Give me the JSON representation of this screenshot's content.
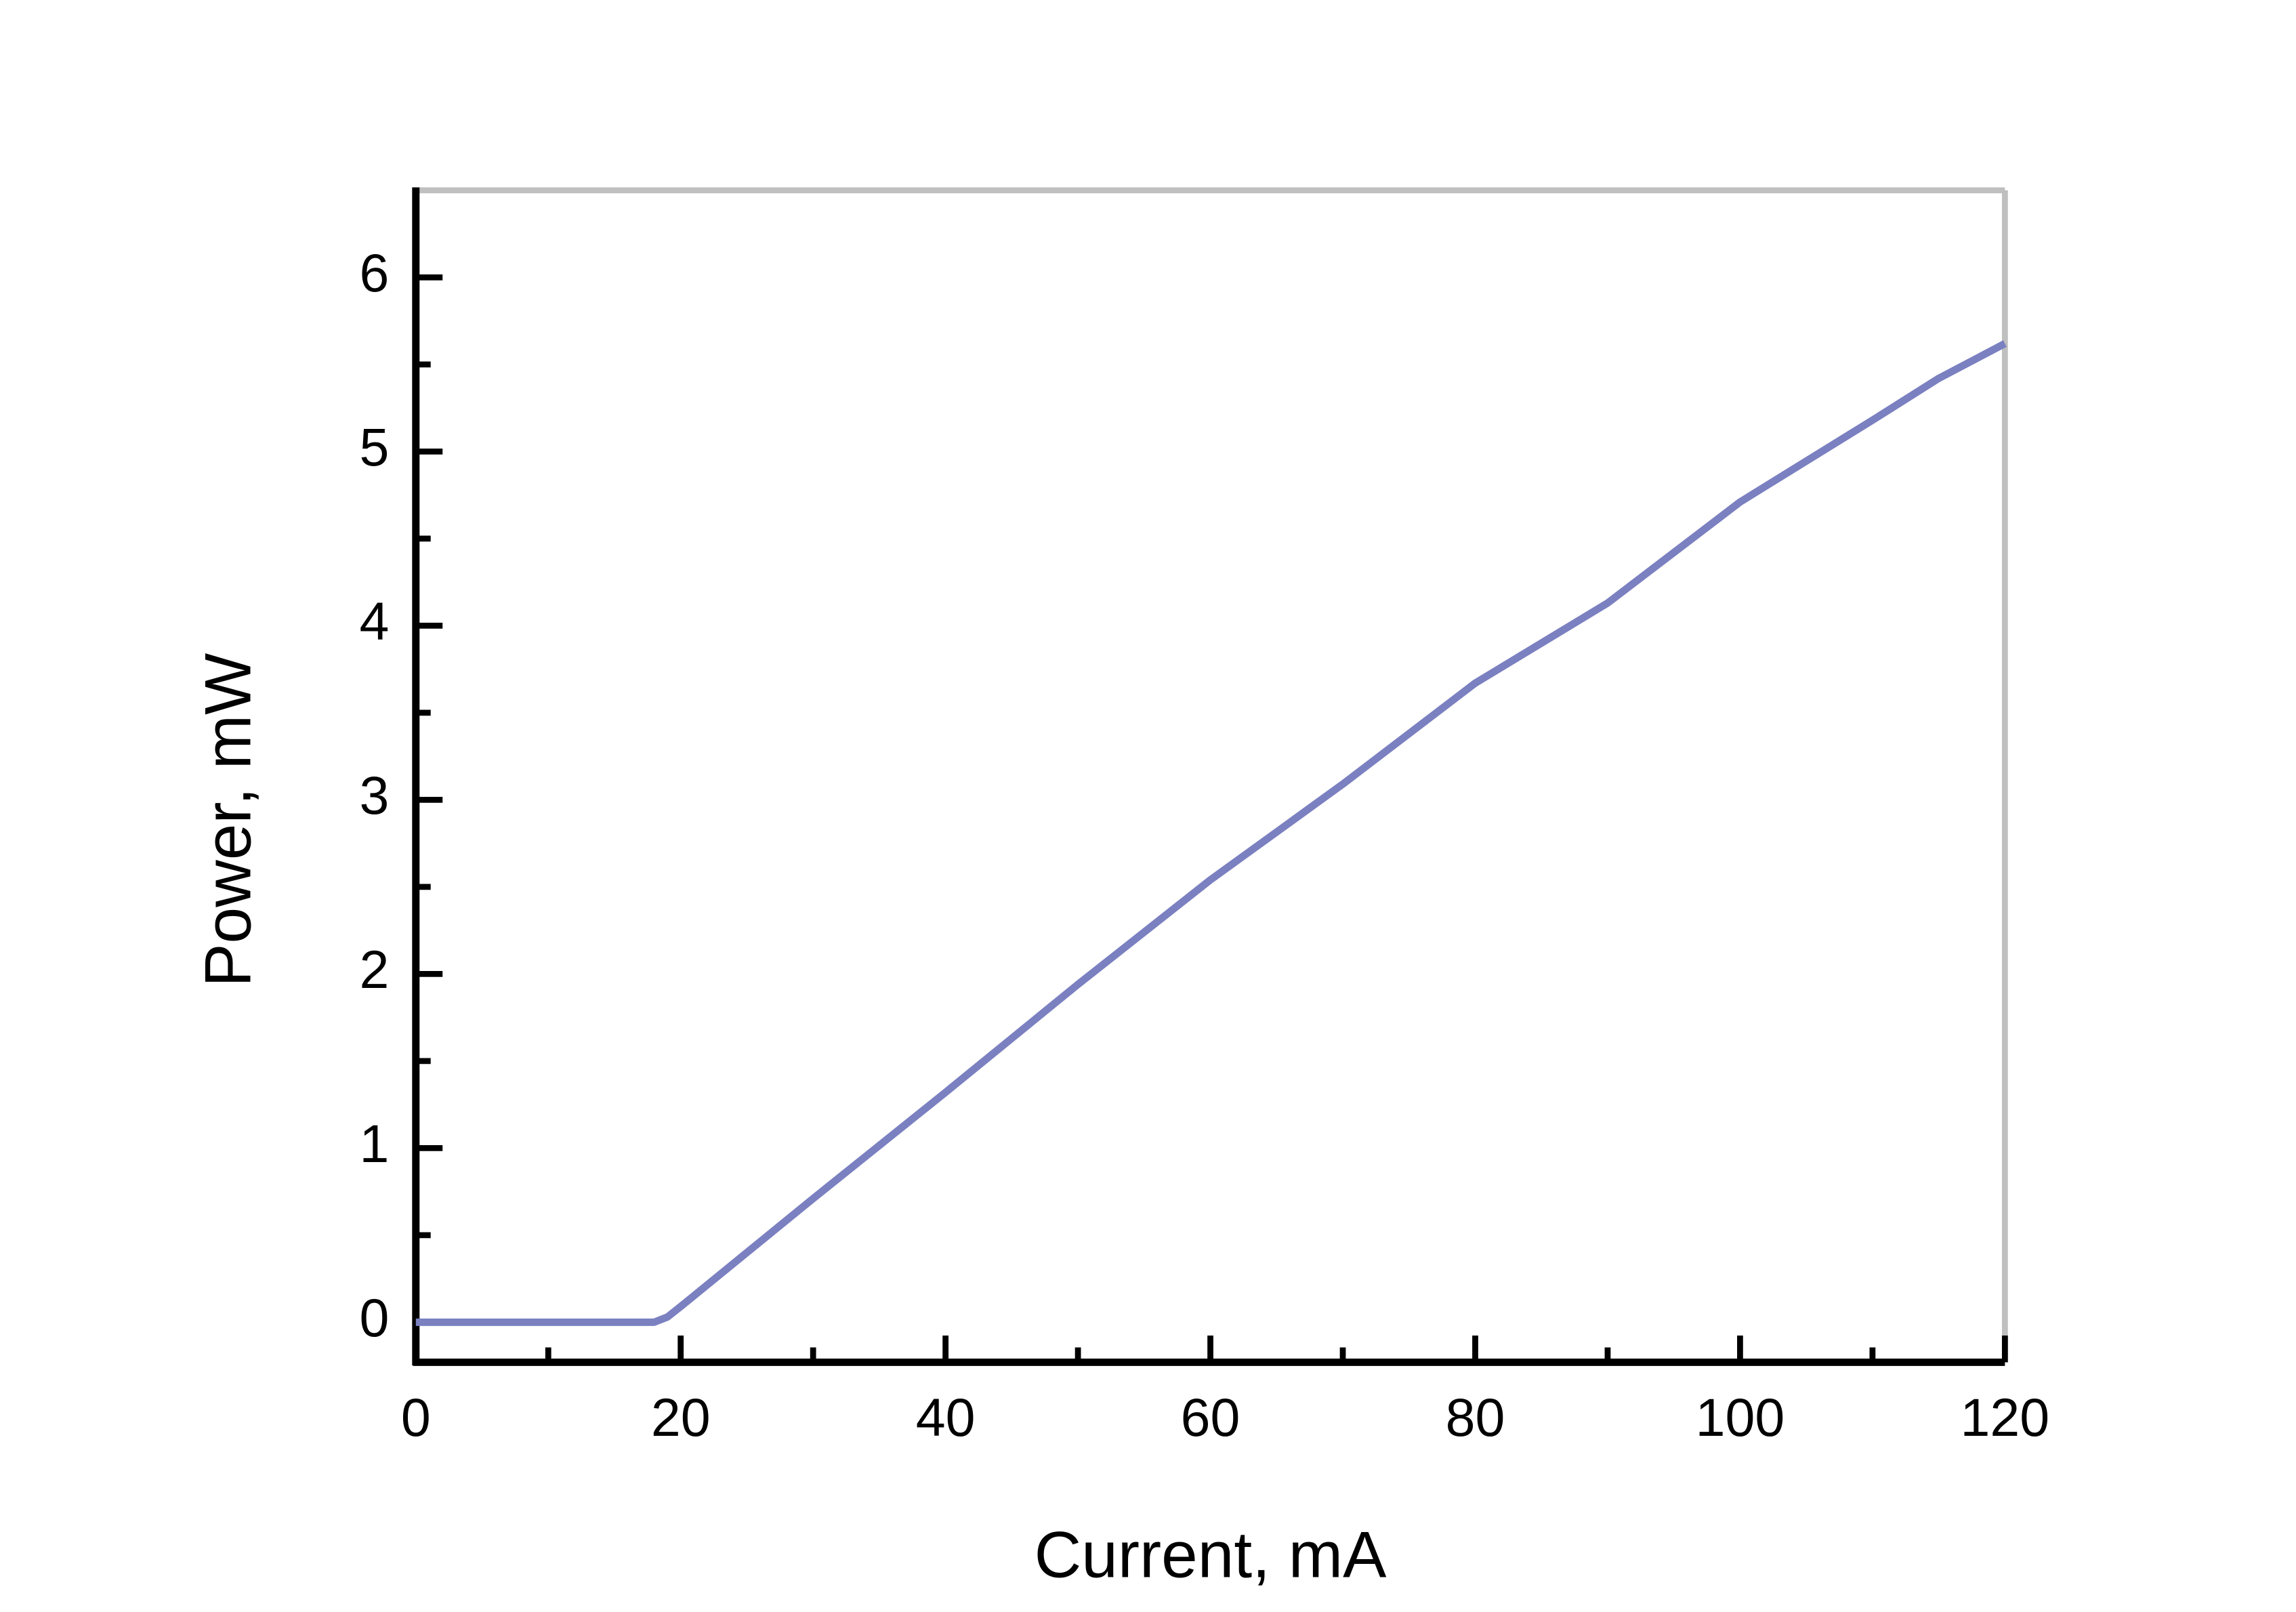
{
  "chart_data": {
    "type": "line",
    "x_label": "Current, mA",
    "y_label": "Power, mW",
    "x": [
      0,
      5,
      10,
      15,
      18,
      19,
      20,
      25,
      30,
      40,
      50,
      60,
      70,
      80,
      90,
      100,
      110,
      115,
      120
    ],
    "series": [
      {
        "color": "#7a80c0",
        "values": [
          0,
          0,
          0,
          0,
          0,
          0.03,
          0.09,
          0.4,
          0.71,
          1.32,
          1.94,
          2.54,
          3.09,
          3.67,
          4.13,
          4.71,
          5.18,
          5.42,
          5.62
        ]
      }
    ],
    "xlim": [
      0,
      120
    ],
    "xticks": [
      0,
      20,
      40,
      60,
      80,
      100,
      120
    ],
    "ylim": [
      -0.23,
      6.5
    ],
    "yticks": [
      0,
      1,
      2,
      3,
      4,
      5,
      6
    ],
    "grid": false
  }
}
